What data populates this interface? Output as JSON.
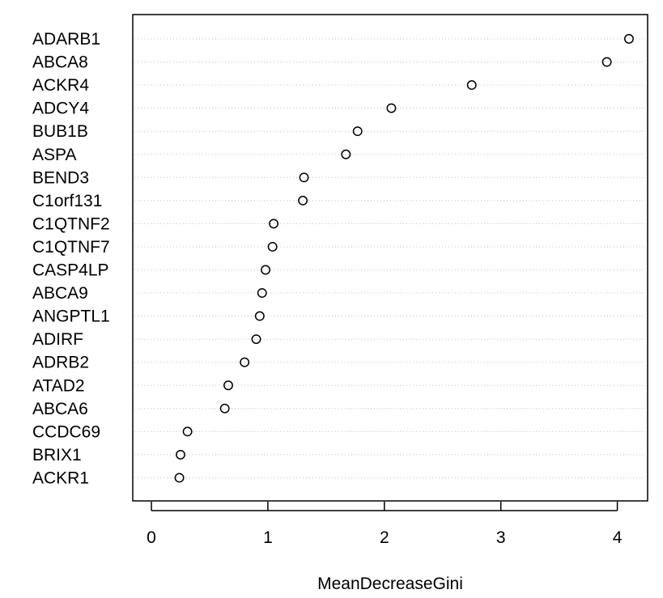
{
  "chart_data": {
    "type": "scatter",
    "subtype": "dotchart",
    "title": "",
    "xlabel": "MeanDecreaseGini",
    "ylabel": "",
    "xlim": [
      -0.16,
      4.26
    ],
    "x_ticks": [
      0,
      1,
      2,
      3,
      4
    ],
    "x_tick_labels": [
      "0",
      "1",
      "2",
      "3",
      "4"
    ],
    "grid": "dotted horizontal guide lines",
    "legend": "none",
    "marker": "open circle",
    "marker_color": "#000000",
    "grid_color": "#bebebe",
    "points": [
      {
        "label": "ADARB1",
        "value": 4.1
      },
      {
        "label": "ABCA8",
        "value": 3.91
      },
      {
        "label": "ACKR4",
        "value": 2.75
      },
      {
        "label": "ADCY4",
        "value": 2.06
      },
      {
        "label": "BUB1B",
        "value": 1.77
      },
      {
        "label": "ASPA",
        "value": 1.67
      },
      {
        "label": "BEND3",
        "value": 1.31
      },
      {
        "label": "C1orf131",
        "value": 1.3
      },
      {
        "label": "C1QTNF2",
        "value": 1.05
      },
      {
        "label": "C1QTNF7",
        "value": 1.04
      },
      {
        "label": "CASP4LP",
        "value": 0.98
      },
      {
        "label": "ABCA9",
        "value": 0.95
      },
      {
        "label": "ANGPTL1",
        "value": 0.93
      },
      {
        "label": "ADIRF",
        "value": 0.9
      },
      {
        "label": "ADRB2",
        "value": 0.8
      },
      {
        "label": "ATAD2",
        "value": 0.66
      },
      {
        "label": "ABCA6",
        "value": 0.63
      },
      {
        "label": "CCDC69",
        "value": 0.31
      },
      {
        "label": "BRIX1",
        "value": 0.25
      },
      {
        "label": "ACKR1",
        "value": 0.24
      }
    ]
  }
}
